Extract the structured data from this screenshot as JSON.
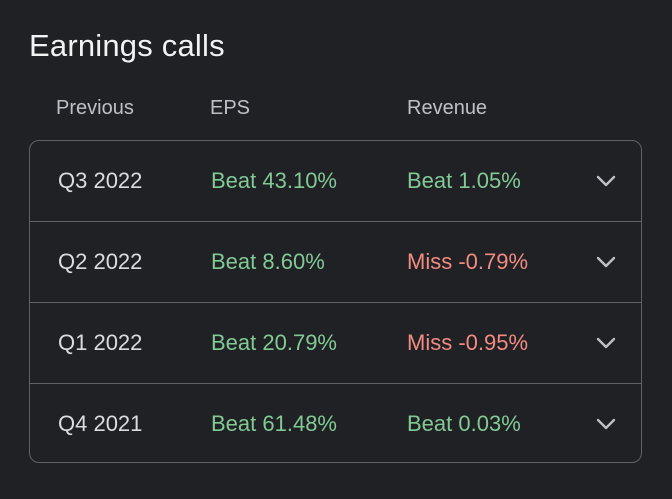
{
  "title": "Earnings calls",
  "headers": {
    "previous": "Previous",
    "eps": "EPS",
    "revenue": "Revenue"
  },
  "rows": [
    {
      "period": "Q3 2022",
      "eps": "Beat 43.10%",
      "eps_status": "beat",
      "revenue": "Beat 1.05%",
      "revenue_status": "beat"
    },
    {
      "period": "Q2 2022",
      "eps": "Beat 8.60%",
      "eps_status": "beat",
      "revenue": "Miss -0.79%",
      "revenue_status": "miss"
    },
    {
      "period": "Q1 2022",
      "eps": "Beat 20.79%",
      "eps_status": "beat",
      "revenue": "Miss -0.95%",
      "revenue_status": "miss"
    },
    {
      "period": "Q4 2021",
      "eps": "Beat 61.48%",
      "eps_status": "beat",
      "revenue": "Beat 0.03%",
      "revenue_status": "beat"
    }
  ],
  "colors": {
    "background": "#202124",
    "beat": "#81c995",
    "miss": "#f28b82",
    "border": "#5f6368"
  },
  "icons": {
    "expand": "chevron-down-icon"
  }
}
